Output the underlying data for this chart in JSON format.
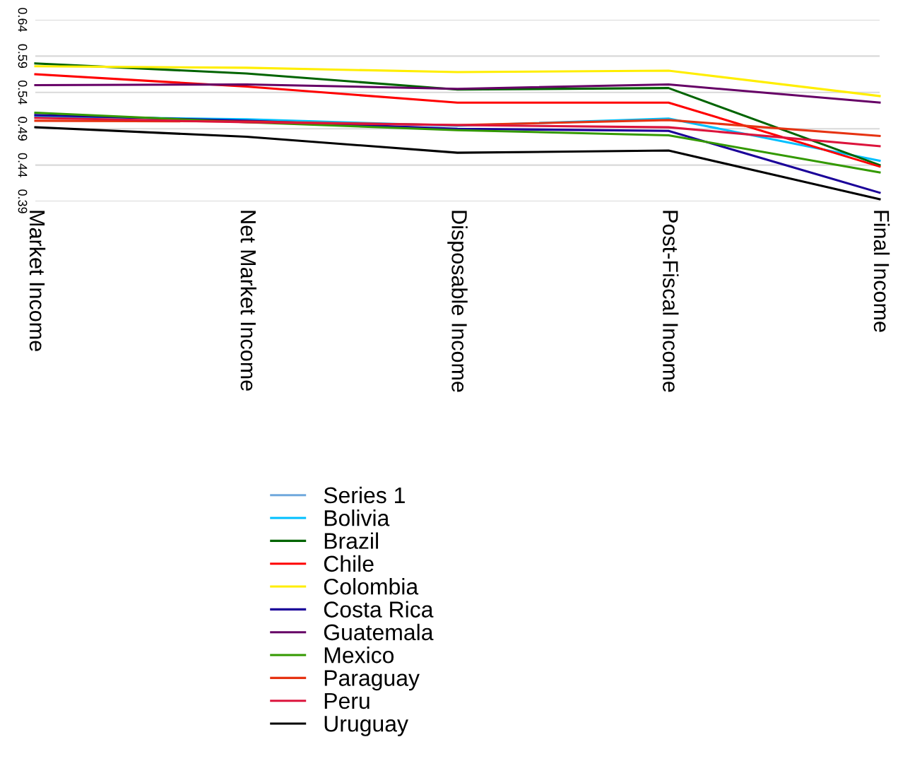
{
  "chart_data": {
    "type": "line",
    "categories": [
      "Market Income",
      "Net Market Income",
      "Disposable Income",
      "Post-Fiscal Income",
      "Final Income"
    ],
    "series": [
      {
        "name": "Series 1",
        "color": "#6fa8dc",
        "values": [
          null,
          null,
          null,
          null,
          null
        ]
      },
      {
        "name": "Bolivia",
        "color": "#00bfff",
        "values": [
          0.507,
          0.503,
          0.494,
          0.504,
          0.446
        ]
      },
      {
        "name": "Brazil",
        "color": "#006400",
        "values": [
          0.58,
          0.566,
          0.544,
          0.546,
          0.44
        ]
      },
      {
        "name": "Chile",
        "color": "#ff0000",
        "values": [
          0.565,
          0.548,
          0.526,
          0.526,
          0.438
        ]
      },
      {
        "name": "Colombia",
        "color": "#ffee00",
        "values": [
          0.576,
          0.574,
          0.568,
          0.57,
          0.535
        ]
      },
      {
        "name": "Costa Rica",
        "color": "#1a0099",
        "values": [
          0.509,
          0.501,
          0.49,
          0.487,
          0.402
        ]
      },
      {
        "name": "Guatemala",
        "color": "#660066",
        "values": [
          0.55,
          0.551,
          0.545,
          0.551,
          0.526
        ]
      },
      {
        "name": "Mexico",
        "color": "#339900",
        "values": [
          0.512,
          0.499,
          0.488,
          0.481,
          0.43
        ]
      },
      {
        "name": "Paraguay",
        "color": "#e63312",
        "values": [
          0.501,
          0.5,
          0.495,
          0.502,
          0.48
        ]
      },
      {
        "name": "Peru",
        "color": "#dc143c",
        "values": [
          0.505,
          0.499,
          0.495,
          0.492,
          0.466
        ]
      },
      {
        "name": "Uruguay",
        "color": "#000000",
        "values": [
          0.492,
          0.479,
          0.457,
          0.46,
          0.393
        ]
      }
    ],
    "ylim": [
      0.39,
      0.64
    ],
    "yticks": [
      0.39,
      0.44,
      0.49,
      0.54,
      0.59,
      0.64
    ],
    "grid": "y",
    "legend": "bottom",
    "marker": "none",
    "line_style": "solid"
  }
}
